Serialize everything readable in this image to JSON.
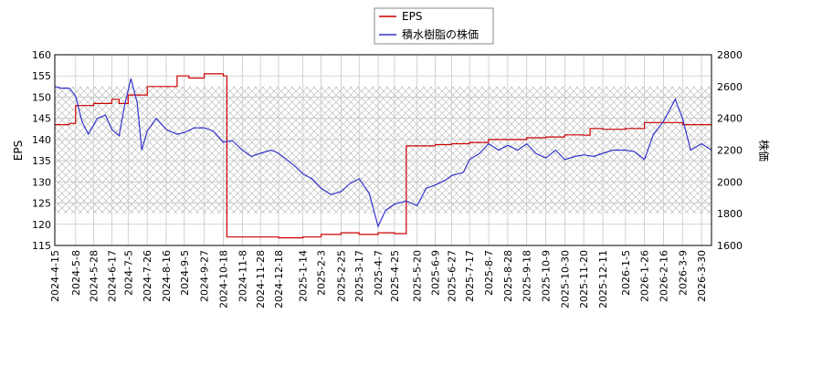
{
  "chart_data": {
    "type": "line",
    "title": "",
    "legend_placement": "top-center",
    "grid": true,
    "xlabel": "",
    "y_left_label": "EPS",
    "y_right_label": "株価",
    "y_left_lim": [
      115,
      160
    ],
    "y_right_lim": [
      1600,
      2800
    ],
    "y_left_ticks": [
      "115",
      "120",
      "125",
      "130",
      "135",
      "140",
      "145",
      "150",
      "155",
      "160"
    ],
    "y_right_ticks": [
      "1600",
      "1800",
      "2000",
      "2200",
      "2400",
      "2600",
      "2800"
    ],
    "x_range": [
      "2024-04-15",
      "2026-04-10"
    ],
    "x_ticks": [
      "2024-4-15",
      "2024-5-8",
      "2024-5-28",
      "2024-6-17",
      "2024-7-5",
      "2024-7-26",
      "2024-8-16",
      "2024-9-5",
      "2024-9-27",
      "2024-10-18",
      "2024-11-8",
      "2024-11-28",
      "2024-12-18",
      "2025-1-14",
      "2025-2-3",
      "2025-2-25",
      "2025-3-17",
      "2025-4-7",
      "2025-4-25",
      "2025-5-20",
      "2025-6-9",
      "2025-6-27",
      "2025-7-17",
      "2025-8-7",
      "2025-8-28",
      "2025-9-18",
      "2025-10-9",
      "2025-10-30",
      "2025-11-20",
      "2025-12-11",
      "2026-1-5",
      "2026-1-26",
      "2026-2-16",
      "2026-3-9",
      "2026-3-30"
    ],
    "hatch_band_right": [
      1800,
      2600
    ],
    "series": [
      {
        "name": "EPS",
        "axis": "left",
        "color": "#cc0000",
        "points": [
          [
            "2024-04-15",
            143.5
          ],
          [
            "2024-05-01",
            143.8
          ],
          [
            "2024-05-08",
            148
          ],
          [
            "2024-05-28",
            148.5
          ],
          [
            "2024-06-17",
            149.5
          ],
          [
            "2024-06-25",
            148.5
          ],
          [
            "2024-07-05",
            150.5
          ],
          [
            "2024-07-26",
            152.5
          ],
          [
            "2024-08-16",
            152.5
          ],
          [
            "2024-08-28",
            155
          ],
          [
            "2024-09-10",
            154.5
          ],
          [
            "2024-09-27",
            155.5
          ],
          [
            "2024-10-18",
            155
          ],
          [
            "2024-10-22",
            117
          ],
          [
            "2024-11-28",
            117
          ],
          [
            "2024-12-18",
            116.8
          ],
          [
            "2025-01-14",
            117
          ],
          [
            "2025-02-03",
            117.6
          ],
          [
            "2025-02-25",
            118
          ],
          [
            "2025-03-17",
            117.6
          ],
          [
            "2025-04-07",
            118
          ],
          [
            "2025-04-25",
            117.8
          ],
          [
            "2025-05-06",
            117.8
          ],
          [
            "2025-05-08",
            138.5
          ],
          [
            "2025-05-20",
            138.5
          ],
          [
            "2025-06-09",
            138.8
          ],
          [
            "2025-06-27",
            139
          ],
          [
            "2025-07-17",
            139.3
          ],
          [
            "2025-08-07",
            140
          ],
          [
            "2025-08-28",
            140
          ],
          [
            "2025-09-18",
            140.4
          ],
          [
            "2025-10-09",
            140.6
          ],
          [
            "2025-10-30",
            141.1
          ],
          [
            "2025-11-20",
            141
          ],
          [
            "2025-11-27",
            142.6
          ],
          [
            "2025-12-11",
            142.4
          ],
          [
            "2026-01-05",
            142.6
          ],
          [
            "2026-01-26",
            144
          ],
          [
            "2026-02-16",
            144
          ],
          [
            "2026-03-09",
            143.5
          ],
          [
            "2026-04-10",
            143.5
          ]
        ]
      },
      {
        "name": "積水樹脂の株価",
        "axis": "right",
        "color": "#3333cc",
        "points": [
          [
            "2024-04-15",
            2600
          ],
          [
            "2024-04-22",
            2590
          ],
          [
            "2024-05-01",
            2590
          ],
          [
            "2024-05-08",
            2540
          ],
          [
            "2024-05-15",
            2380
          ],
          [
            "2024-05-22",
            2300
          ],
          [
            "2024-06-01",
            2400
          ],
          [
            "2024-06-10",
            2420
          ],
          [
            "2024-06-17",
            2330
          ],
          [
            "2024-06-25",
            2290
          ],
          [
            "2024-07-01",
            2480
          ],
          [
            "2024-07-08",
            2650
          ],
          [
            "2024-07-15",
            2500
          ],
          [
            "2024-07-20",
            2200
          ],
          [
            "2024-07-26",
            2320
          ],
          [
            "2024-08-05",
            2400
          ],
          [
            "2024-08-16",
            2330
          ],
          [
            "2024-08-28",
            2300
          ],
          [
            "2024-09-05",
            2310
          ],
          [
            "2024-09-16",
            2340
          ],
          [
            "2024-09-27",
            2340
          ],
          [
            "2024-10-07",
            2320
          ],
          [
            "2024-10-18",
            2250
          ],
          [
            "2024-10-28",
            2260
          ],
          [
            "2024-11-08",
            2200
          ],
          [
            "2024-11-18",
            2160
          ],
          [
            "2024-11-28",
            2180
          ],
          [
            "2024-12-10",
            2200
          ],
          [
            "2024-12-18",
            2180
          ],
          [
            "2025-01-05",
            2100
          ],
          [
            "2025-01-14",
            2050
          ],
          [
            "2025-01-24",
            2020
          ],
          [
            "2025-02-03",
            1960
          ],
          [
            "2025-02-14",
            1920
          ],
          [
            "2025-02-25",
            1940
          ],
          [
            "2025-03-07",
            1990
          ],
          [
            "2025-03-17",
            2020
          ],
          [
            "2025-03-28",
            1930
          ],
          [
            "2025-04-07",
            1720
          ],
          [
            "2025-04-15",
            1820
          ],
          [
            "2025-04-25",
            1860
          ],
          [
            "2025-05-08",
            1880
          ],
          [
            "2025-05-20",
            1850
          ],
          [
            "2025-05-30",
            1960
          ],
          [
            "2025-06-09",
            1980
          ],
          [
            "2025-06-20",
            2010
          ],
          [
            "2025-06-27",
            2040
          ],
          [
            "2025-07-10",
            2060
          ],
          [
            "2025-07-17",
            2140
          ],
          [
            "2025-07-28",
            2180
          ],
          [
            "2025-08-07",
            2240
          ],
          [
            "2025-08-18",
            2200
          ],
          [
            "2025-08-28",
            2230
          ],
          [
            "2025-09-08",
            2200
          ],
          [
            "2025-09-18",
            2240
          ],
          [
            "2025-09-28",
            2180
          ],
          [
            "2025-10-09",
            2150
          ],
          [
            "2025-10-20",
            2200
          ],
          [
            "2025-10-30",
            2140
          ],
          [
            "2025-11-10",
            2160
          ],
          [
            "2025-11-20",
            2170
          ],
          [
            "2025-12-01",
            2160
          ],
          [
            "2025-12-11",
            2180
          ],
          [
            "2025-12-22",
            2200
          ],
          [
            "2026-01-05",
            2200
          ],
          [
            "2026-01-15",
            2190
          ],
          [
            "2026-01-26",
            2140
          ],
          [
            "2026-02-05",
            2300
          ],
          [
            "2026-02-16",
            2380
          ],
          [
            "2026-03-01",
            2520
          ],
          [
            "2026-03-09",
            2400
          ],
          [
            "2026-03-18",
            2200
          ],
          [
            "2026-03-30",
            2240
          ],
          [
            "2026-04-10",
            2200
          ]
        ]
      }
    ]
  }
}
